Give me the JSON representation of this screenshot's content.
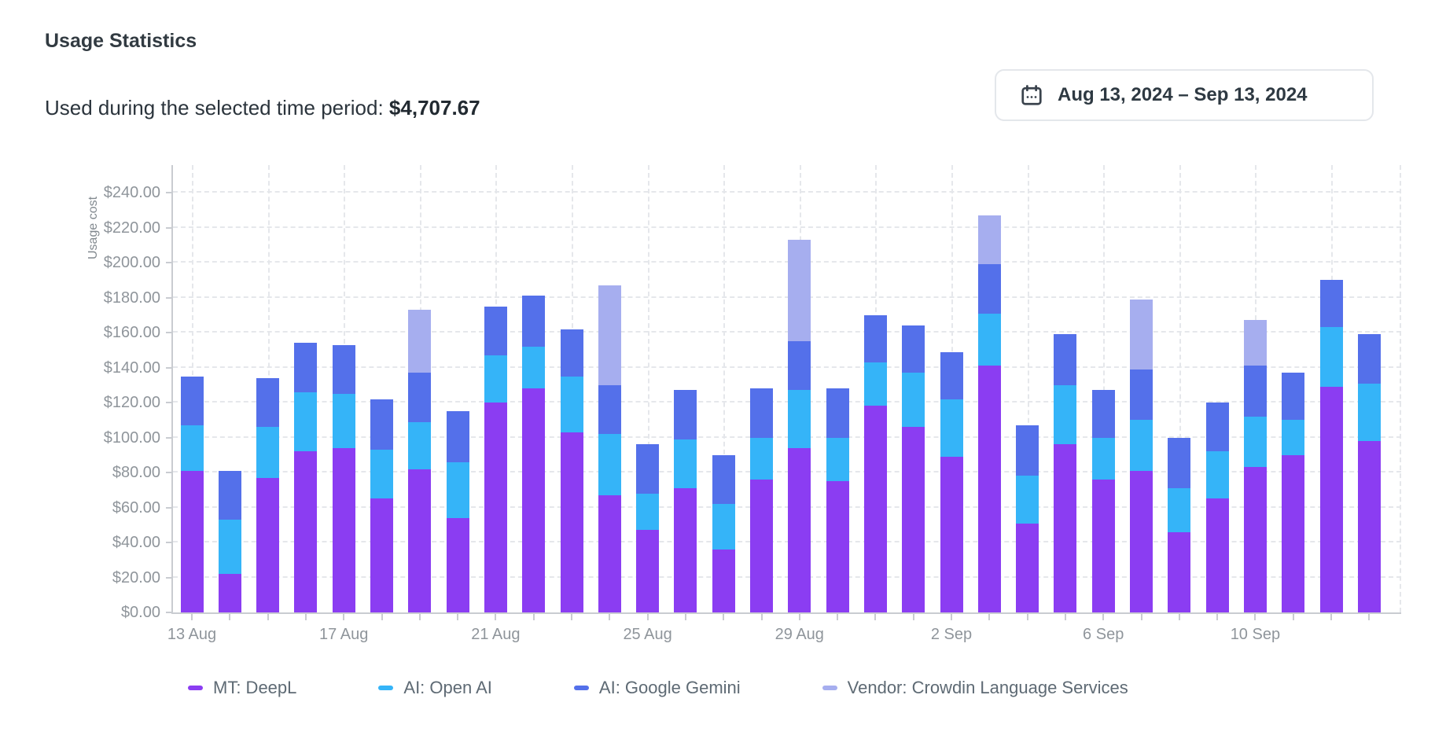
{
  "header": {
    "title": "Usage Statistics",
    "subtitle_label": "Used during the selected time period: ",
    "subtitle_value": "$4,707.67"
  },
  "date_picker": {
    "icon": "calendar-icon",
    "label": "Aug 13, 2024 – Sep 13, 2024"
  },
  "chart_data": {
    "type": "bar",
    "stacked": true,
    "title": "Usage Statistics",
    "xlabel": "",
    "ylabel": "Usage cost",
    "ylim": [
      0,
      256
    ],
    "grid": "dashed",
    "legend_position": "bottom",
    "y_ticks": [
      "$0.00",
      "$20.00",
      "$40.00",
      "$60.00",
      "$80.00",
      "$100.00",
      "$120.00",
      "$140.00",
      "$160.00",
      "$180.00",
      "$200.00",
      "$220.00",
      "$240.00"
    ],
    "x_labeled_ticks": [
      {
        "i": 0,
        "label": "13 Aug"
      },
      {
        "i": 4,
        "label": "17 Aug"
      },
      {
        "i": 8,
        "label": "21 Aug"
      },
      {
        "i": 12,
        "label": "25 Aug"
      },
      {
        "i": 16,
        "label": "29 Aug"
      },
      {
        "i": 20,
        "label": "2 Sep"
      },
      {
        "i": 24,
        "label": "6 Sep"
      },
      {
        "i": 28,
        "label": "10 Sep"
      }
    ],
    "categories": [
      "13 Aug",
      "14 Aug",
      "15 Aug",
      "16 Aug",
      "17 Aug",
      "18 Aug",
      "19 Aug",
      "20 Aug",
      "21 Aug",
      "22 Aug",
      "23 Aug",
      "24 Aug",
      "25 Aug",
      "26 Aug",
      "27 Aug",
      "28 Aug",
      "29 Aug",
      "30 Aug",
      "31 Aug",
      "1 Sep",
      "2 Sep",
      "3 Sep",
      "4 Sep",
      "5 Sep",
      "6 Sep",
      "7 Sep",
      "8 Sep",
      "9 Sep",
      "10 Sep",
      "11 Sep",
      "12 Sep",
      "13 Sep"
    ],
    "series": [
      {
        "name": "MT: DeepL",
        "color": "#8b3df2",
        "values": [
          81,
          22,
          77,
          92,
          94,
          65,
          82,
          54,
          120,
          128,
          103,
          67,
          47,
          71,
          36,
          76,
          94,
          75,
          118,
          106,
          89,
          141,
          51,
          96,
          76,
          81,
          46,
          65,
          83,
          90,
          129,
          98
        ]
      },
      {
        "name": "AI: Open AI",
        "color": "#35b4f8",
        "values": [
          26,
          31,
          29,
          34,
          31,
          28,
          27,
          32,
          27,
          24,
          32,
          35,
          21,
          28,
          26,
          24,
          33,
          25,
          25,
          31,
          33,
          30,
          27,
          34,
          24,
          29,
          25,
          27,
          29,
          20,
          34,
          33
        ]
      },
      {
        "name": "AI: Google Gemini",
        "color": "#5470ea",
        "values": [
          28,
          28,
          28,
          28,
          28,
          29,
          28,
          29,
          28,
          29,
          27,
          28,
          28,
          28,
          28,
          28,
          28,
          28,
          27,
          27,
          27,
          28,
          29,
          29,
          27,
          29,
          29,
          28,
          29,
          27,
          27,
          28
        ]
      },
      {
        "name": "Vendor: Crowdin Language Services",
        "color": "#a6aeef",
        "values": [
          0,
          0,
          0,
          0,
          0,
          0,
          36,
          0,
          0,
          0,
          0,
          57,
          0,
          0,
          0,
          0,
          58,
          0,
          0,
          0,
          0,
          28,
          0,
          0,
          0,
          40,
          0,
          0,
          26,
          0,
          0,
          0
        ]
      }
    ]
  }
}
